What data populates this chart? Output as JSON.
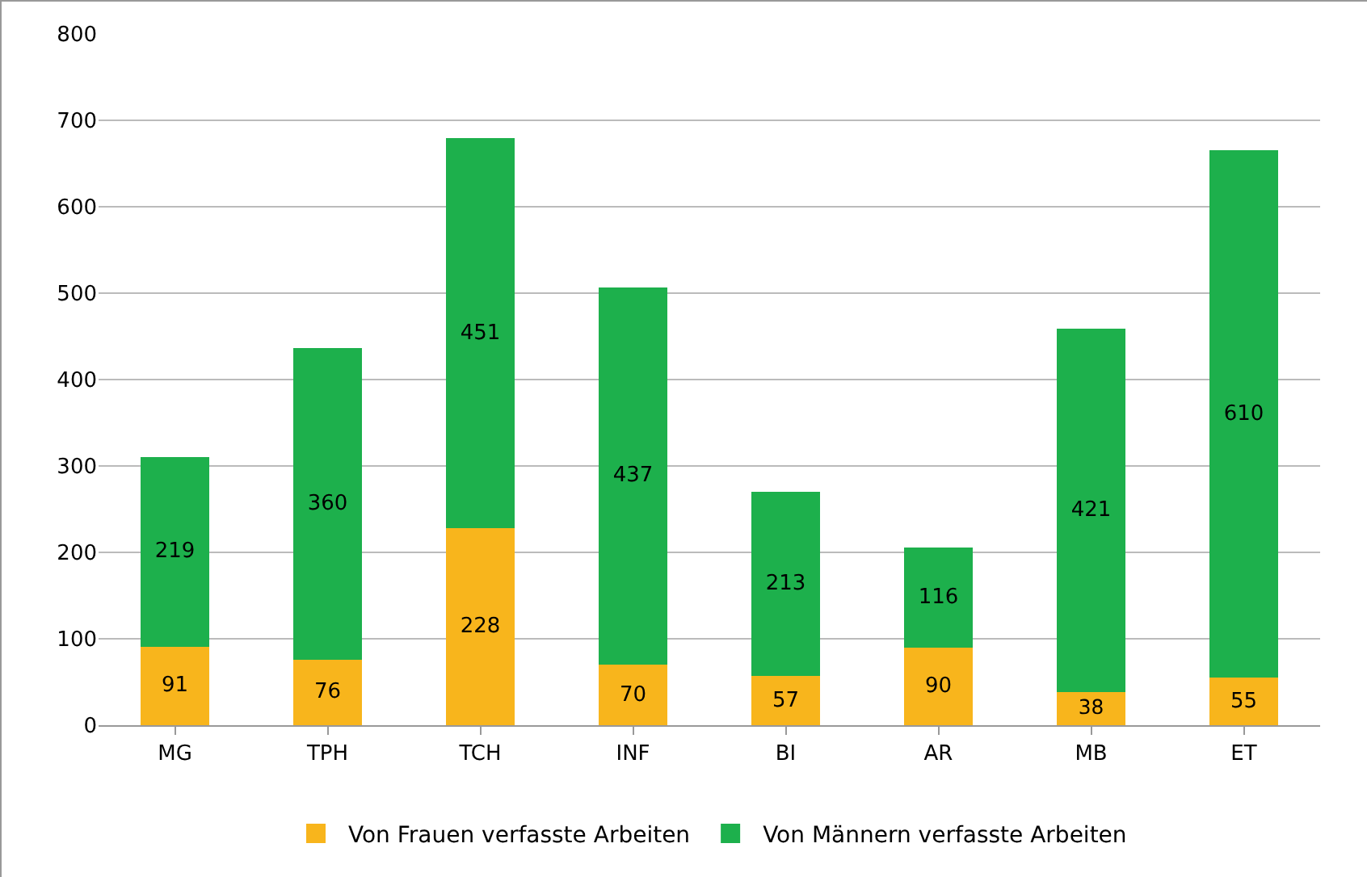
{
  "chart_data": {
    "type": "bar",
    "stacked": true,
    "categories": [
      "MG",
      "TPH",
      "TCH",
      "INF",
      "BI",
      "AR",
      "MB",
      "ET"
    ],
    "series": [
      {
        "name": "Von Frauen verfasste Arbeiten",
        "color": "#f8b51c",
        "values": [
          91,
          76,
          228,
          70,
          57,
          90,
          38,
          55
        ]
      },
      {
        "name": "Von Männern verfasste Arbeiten",
        "color": "#1db04c",
        "values": [
          219,
          360,
          451,
          437,
          213,
          116,
          421,
          610
        ]
      }
    ],
    "ylim": [
      0,
      800
    ],
    "yticks": [
      0,
      100,
      200,
      300,
      400,
      500,
      600,
      700,
      800
    ],
    "grid": "y",
    "legend": "bottom",
    "data_labels": true
  }
}
